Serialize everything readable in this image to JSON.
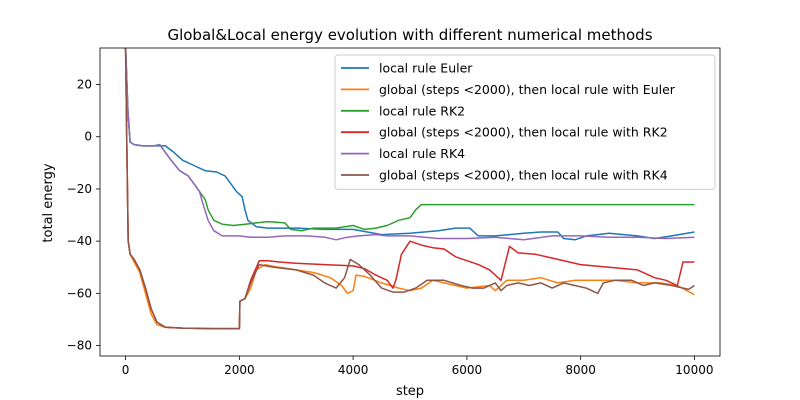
{
  "chart_data": {
    "type": "line",
    "title": "Global&Local energy evolution with different numerical methods",
    "xlabel": "step",
    "ylabel": "total energy",
    "xlim": [
      -450,
      10450
    ],
    "ylim": [
      -84,
      34
    ],
    "xticks": [
      0,
      2000,
      4000,
      6000,
      8000,
      10000
    ],
    "yticks": [
      -80,
      -60,
      -40,
      -20,
      0,
      20
    ],
    "grid": false,
    "legend_position": "top-right",
    "series": [
      {
        "name": "local rule Euler",
        "color": "#1f77b4",
        "points": [
          [
            0,
            34
          ],
          [
            40,
            10
          ],
          [
            80,
            -2
          ],
          [
            150,
            -3
          ],
          [
            300,
            -3.5
          ],
          [
            500,
            -3.5
          ],
          [
            700,
            -3.5
          ],
          [
            850,
            -6
          ],
          [
            1000,
            -9
          ],
          [
            1200,
            -11
          ],
          [
            1400,
            -13
          ],
          [
            1600,
            -13.5
          ],
          [
            1750,
            -15
          ],
          [
            1850,
            -18
          ],
          [
            1950,
            -21
          ],
          [
            2050,
            -23
          ],
          [
            2100,
            -28
          ],
          [
            2150,
            -32
          ],
          [
            2300,
            -34.5
          ],
          [
            2500,
            -35
          ],
          [
            3000,
            -35
          ],
          [
            3500,
            -35.5
          ],
          [
            4000,
            -35.5
          ],
          [
            4500,
            -37.5
          ],
          [
            5000,
            -37
          ],
          [
            5500,
            -36
          ],
          [
            5800,
            -35
          ],
          [
            6050,
            -35
          ],
          [
            6200,
            -38
          ],
          [
            6500,
            -38
          ],
          [
            7000,
            -37
          ],
          [
            7300,
            -36.5
          ],
          [
            7600,
            -36.5
          ],
          [
            7700,
            -39
          ],
          [
            7900,
            -39.5
          ],
          [
            8100,
            -38
          ],
          [
            8500,
            -37
          ],
          [
            9000,
            -38
          ],
          [
            9300,
            -39
          ],
          [
            9600,
            -38
          ],
          [
            10000,
            -36.5
          ]
        ]
      },
      {
        "name": "global (steps <2000), then local rule with Euler",
        "color": "#ff7f0e",
        "points": [
          [
            0,
            34
          ],
          [
            20,
            0
          ],
          [
            45,
            -40
          ],
          [
            80,
            -45
          ],
          [
            150,
            -48
          ],
          [
            250,
            -52
          ],
          [
            350,
            -60
          ],
          [
            450,
            -68
          ],
          [
            550,
            -72
          ],
          [
            700,
            -73
          ],
          [
            1000,
            -73.3
          ],
          [
            1500,
            -73.5
          ],
          [
            2000,
            -73.5
          ],
          [
            2010,
            -63
          ],
          [
            2100,
            -62
          ],
          [
            2200,
            -58
          ],
          [
            2300,
            -51
          ],
          [
            2450,
            -49
          ],
          [
            2700,
            -50
          ],
          [
            3000,
            -51
          ],
          [
            3300,
            -52
          ],
          [
            3600,
            -54
          ],
          [
            3800,
            -57
          ],
          [
            3900,
            -60
          ],
          [
            4000,
            -59
          ],
          [
            4050,
            -53
          ],
          [
            4200,
            -53.5
          ],
          [
            4500,
            -56
          ],
          [
            4800,
            -58
          ],
          [
            5000,
            -59
          ],
          [
            5200,
            -58
          ],
          [
            5400,
            -55
          ],
          [
            5600,
            -56
          ],
          [
            6000,
            -58
          ],
          [
            6400,
            -57
          ],
          [
            6500,
            -59
          ],
          [
            6700,
            -55
          ],
          [
            7000,
            -55
          ],
          [
            7300,
            -54
          ],
          [
            7600,
            -56
          ],
          [
            7900,
            -55
          ],
          [
            8200,
            -55
          ],
          [
            8600,
            -55
          ],
          [
            9000,
            -56
          ],
          [
            9400,
            -56
          ],
          [
            9700,
            -57
          ],
          [
            10000,
            -60.5
          ]
        ]
      },
      {
        "name": "local rule RK2",
        "color": "#2ca02c",
        "points": [
          [
            0,
            34
          ],
          [
            40,
            10
          ],
          [
            80,
            -2
          ],
          [
            150,
            -3
          ],
          [
            300,
            -3.5
          ],
          [
            500,
            -3.5
          ],
          [
            600,
            -3
          ],
          [
            700,
            -6
          ],
          [
            800,
            -9
          ],
          [
            950,
            -13
          ],
          [
            1100,
            -15
          ],
          [
            1200,
            -18
          ],
          [
            1300,
            -21
          ],
          [
            1400,
            -24
          ],
          [
            1450,
            -28
          ],
          [
            1550,
            -32
          ],
          [
            1700,
            -33.5
          ],
          [
            1900,
            -34
          ],
          [
            2100,
            -33.5
          ],
          [
            2300,
            -33
          ],
          [
            2500,
            -32.5
          ],
          [
            2800,
            -33
          ],
          [
            2900,
            -35.5
          ],
          [
            3100,
            -36
          ],
          [
            3300,
            -35
          ],
          [
            3700,
            -35
          ],
          [
            4000,
            -34
          ],
          [
            4200,
            -35.5
          ],
          [
            4400,
            -35
          ],
          [
            4600,
            -34
          ],
          [
            4800,
            -32
          ],
          [
            5000,
            -31
          ],
          [
            5100,
            -28
          ],
          [
            5200,
            -26
          ],
          [
            5500,
            -26
          ],
          [
            6000,
            -26
          ],
          [
            7000,
            -26
          ],
          [
            8000,
            -26
          ],
          [
            9000,
            -26
          ],
          [
            10000,
            -26
          ]
        ]
      },
      {
        "name": "global (steps <2000), then local rule with RK2",
        "color": "#d62728",
        "points": [
          [
            0,
            34
          ],
          [
            20,
            0
          ],
          [
            45,
            -40
          ],
          [
            80,
            -45
          ],
          [
            150,
            -47
          ],
          [
            250,
            -51
          ],
          [
            350,
            -58
          ],
          [
            450,
            -66
          ],
          [
            550,
            -71
          ],
          [
            700,
            -73
          ],
          [
            1000,
            -73.3
          ],
          [
            1500,
            -73.5
          ],
          [
            2000,
            -73.5
          ],
          [
            2010,
            -63
          ],
          [
            2100,
            -62
          ],
          [
            2200,
            -55
          ],
          [
            2350,
            -47.5
          ],
          [
            2500,
            -47.5
          ],
          [
            2700,
            -48
          ],
          [
            3000,
            -48.5
          ],
          [
            3500,
            -49
          ],
          [
            4000,
            -49.5
          ],
          [
            4200,
            -50.5
          ],
          [
            4400,
            -53
          ],
          [
            4600,
            -55
          ],
          [
            4700,
            -58
          ],
          [
            4750,
            -55
          ],
          [
            4850,
            -45
          ],
          [
            5000,
            -40
          ],
          [
            5200,
            -41.5
          ],
          [
            5400,
            -42.5
          ],
          [
            5600,
            -43
          ],
          [
            5800,
            -46
          ],
          [
            6000,
            -47.5
          ],
          [
            6200,
            -49
          ],
          [
            6400,
            -51
          ],
          [
            6600,
            -55
          ],
          [
            6750,
            -42
          ],
          [
            6900,
            -44.5
          ],
          [
            7200,
            -45
          ],
          [
            7600,
            -47
          ],
          [
            8000,
            -49
          ],
          [
            8500,
            -50
          ],
          [
            9000,
            -51
          ],
          [
            9300,
            -54
          ],
          [
            9500,
            -55
          ],
          [
            9700,
            -57
          ],
          [
            9800,
            -48
          ],
          [
            10000,
            -48
          ]
        ]
      },
      {
        "name": "local rule RK4",
        "color": "#9467bd",
        "points": [
          [
            0,
            34
          ],
          [
            40,
            10
          ],
          [
            80,
            -2
          ],
          [
            150,
            -3
          ],
          [
            300,
            -3.5
          ],
          [
            500,
            -3.5
          ],
          [
            600,
            -3
          ],
          [
            700,
            -6
          ],
          [
            800,
            -9
          ],
          [
            950,
            -13
          ],
          [
            1100,
            -15
          ],
          [
            1200,
            -18
          ],
          [
            1300,
            -21
          ],
          [
            1350,
            -25
          ],
          [
            1450,
            -32
          ],
          [
            1550,
            -36
          ],
          [
            1700,
            -38
          ],
          [
            2000,
            -38
          ],
          [
            2200,
            -38.5
          ],
          [
            2500,
            -38.5
          ],
          [
            2800,
            -38
          ],
          [
            3200,
            -38
          ],
          [
            3500,
            -38.5
          ],
          [
            3700,
            -39.5
          ],
          [
            3900,
            -38.5
          ],
          [
            4100,
            -38
          ],
          [
            4400,
            -37.5
          ],
          [
            4600,
            -38
          ],
          [
            5000,
            -38
          ],
          [
            5500,
            -39
          ],
          [
            6000,
            -39
          ],
          [
            6500,
            -38.5
          ],
          [
            7000,
            -39.5
          ],
          [
            7500,
            -38
          ],
          [
            8000,
            -38
          ],
          [
            8500,
            -38.5
          ],
          [
            9000,
            -38.5
          ],
          [
            9500,
            -39
          ],
          [
            10000,
            -38.5
          ]
        ]
      },
      {
        "name": "global (steps <2000), then local rule with RK4",
        "color": "#8c564b",
        "points": [
          [
            0,
            34
          ],
          [
            20,
            0
          ],
          [
            45,
            -40
          ],
          [
            80,
            -45
          ],
          [
            150,
            -47
          ],
          [
            250,
            -51
          ],
          [
            350,
            -58
          ],
          [
            450,
            -66
          ],
          [
            550,
            -71
          ],
          [
            700,
            -73
          ],
          [
            1000,
            -73.3
          ],
          [
            1500,
            -73.5
          ],
          [
            2000,
            -73.5
          ],
          [
            2010,
            -63
          ],
          [
            2100,
            -62
          ],
          [
            2200,
            -56
          ],
          [
            2350,
            -49
          ],
          [
            2600,
            -50
          ],
          [
            3000,
            -51
          ],
          [
            3300,
            -53
          ],
          [
            3500,
            -56
          ],
          [
            3700,
            -58
          ],
          [
            3850,
            -54
          ],
          [
            3950,
            -47
          ],
          [
            4100,
            -49
          ],
          [
            4300,
            -53
          ],
          [
            4500,
            -58
          ],
          [
            4700,
            -59.5
          ],
          [
            4900,
            -59.5
          ],
          [
            5100,
            -58
          ],
          [
            5300,
            -55
          ],
          [
            5600,
            -55
          ],
          [
            5900,
            -57
          ],
          [
            6100,
            -58
          ],
          [
            6300,
            -58
          ],
          [
            6500,
            -56
          ],
          [
            6600,
            -59
          ],
          [
            6700,
            -57
          ],
          [
            6900,
            -56
          ],
          [
            7100,
            -57
          ],
          [
            7300,
            -56
          ],
          [
            7500,
            -58
          ],
          [
            7700,
            -56
          ],
          [
            7900,
            -57
          ],
          [
            8100,
            -58
          ],
          [
            8300,
            -60
          ],
          [
            8400,
            -56
          ],
          [
            8600,
            -55
          ],
          [
            8900,
            -55
          ],
          [
            9100,
            -57
          ],
          [
            9300,
            -56
          ],
          [
            9600,
            -57
          ],
          [
            9900,
            -58.5
          ],
          [
            10000,
            -57
          ]
        ]
      }
    ]
  }
}
